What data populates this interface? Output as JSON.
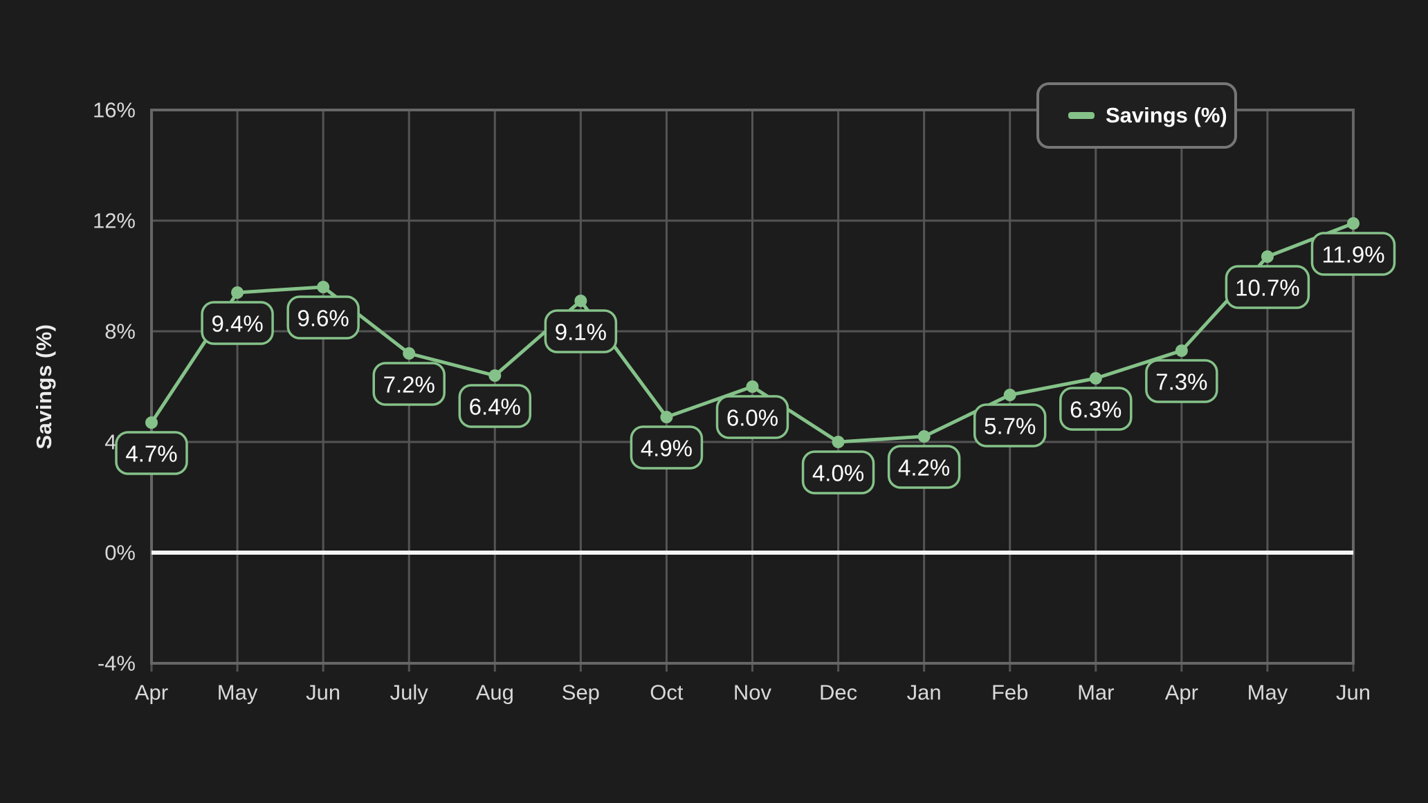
{
  "chart_data": {
    "type": "line",
    "title": "",
    "xlabel": "",
    "ylabel": "Savings (%)",
    "legend": {
      "label": "Savings (%)",
      "position": "top-right"
    },
    "categories": [
      "Apr",
      "May",
      "Jun",
      "July",
      "Aug",
      "Sep",
      "Oct",
      "Nov",
      "Dec",
      "Jan",
      "Feb",
      "Mar",
      "Apr",
      "May",
      "Jun"
    ],
    "series": [
      {
        "name": "Savings (%)",
        "values": [
          4.7,
          9.4,
          9.6,
          7.2,
          6.4,
          9.1,
          4.9,
          6.0,
          4.0,
          4.2,
          5.7,
          6.3,
          7.3,
          10.7,
          11.9
        ]
      }
    ],
    "data_labels": [
      "4.7%",
      "9.4%",
      "9.6%",
      "7.2%",
      "6.4%",
      "9.1%",
      "4.9%",
      "6.0%",
      "4.0%",
      "4.2%",
      "5.7%",
      "6.3%",
      "7.3%",
      "10.7%",
      "11.9%"
    ],
    "ylim": [
      -4,
      16
    ],
    "yticks": [
      {
        "value": 16,
        "label": "16%"
      },
      {
        "value": 12,
        "label": "12%"
      },
      {
        "value": 8,
        "label": "8%"
      },
      {
        "value": 4,
        "label": "4%"
      },
      {
        "value": 0,
        "label": "0%"
      },
      {
        "value": -4,
        "label": "-4%"
      }
    ],
    "grid": true,
    "zero_line": true
  },
  "colors": {
    "background": "#1c1c1c",
    "grid": "#545454",
    "frame": "#666666",
    "zero_line": "#f5f5f5",
    "series_green": "#85c289",
    "pill_fill": "#1e1e1e",
    "pill_text": "#ffffff",
    "tick_text": "#d9d9d9",
    "axis_title_text": "#ececec",
    "legend_border": "#767676"
  }
}
